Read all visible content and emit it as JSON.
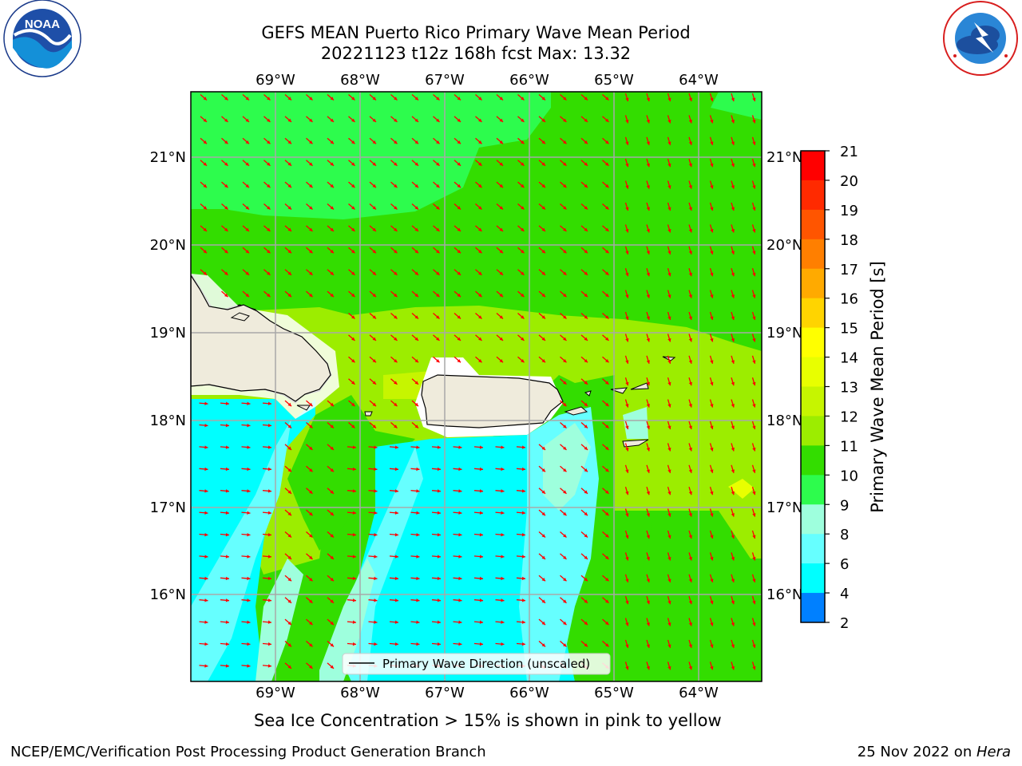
{
  "header": {
    "title_line1": "GEFS MEAN Puerto Rico Primary Wave Mean Period",
    "title_line2": "20221123 t12z 168h fcst   Max: 13.32"
  },
  "logos": {
    "left": {
      "icon": "noaa-logo",
      "text": "NOAA",
      "ring_text": "NATIONAL OCEANIC AND ATMOSPHERIC ADMINISTRATION · U.S. DEPARTMENT OF COMMERCE"
    },
    "right": {
      "icon": "nws-logo",
      "ring_text": "NATIONAL WEATHER SERVICE"
    }
  },
  "map": {
    "lon_labels": [
      "69°W",
      "68°W",
      "67°W",
      "66°W",
      "65°W",
      "64°W"
    ],
    "lat_labels": [
      "21°N",
      "20°N",
      "19°N",
      "18°N",
      "17°N",
      "16°N"
    ],
    "legend_label": "Primary Wave Direction (unscaled)",
    "arrow_color": "#ff0000",
    "land_color": "#efebdc"
  },
  "colorbar": {
    "label": "Primary Wave Mean Period [s]",
    "ticks": [
      "21",
      "20",
      "19",
      "18",
      "17",
      "16",
      "15",
      "14",
      "13",
      "12",
      "11",
      "10",
      "9",
      "8",
      "6",
      "4",
      "2"
    ],
    "colors_top_to_bottom": [
      "#ff0000",
      "#ff2a00",
      "#ff5500",
      "#ff7f00",
      "#ffaa00",
      "#ffd400",
      "#ffff00",
      "#e8ff00",
      "#c6f500",
      "#9ced00",
      "#33dd00",
      "#2dfc4d",
      "#9effdd",
      "#66ffff",
      "#00ffff",
      "#0080ff",
      "#0000ff"
    ]
  },
  "captions": {
    "sea_ice": "Sea Ice Concentration > 15% is shown in pink to yellow"
  },
  "footer": {
    "left": "NCEP/EMC/Verification Post Processing Product Generation Branch",
    "right_prefix": "25 Nov 2022 on ",
    "right_host": "Hera"
  }
}
